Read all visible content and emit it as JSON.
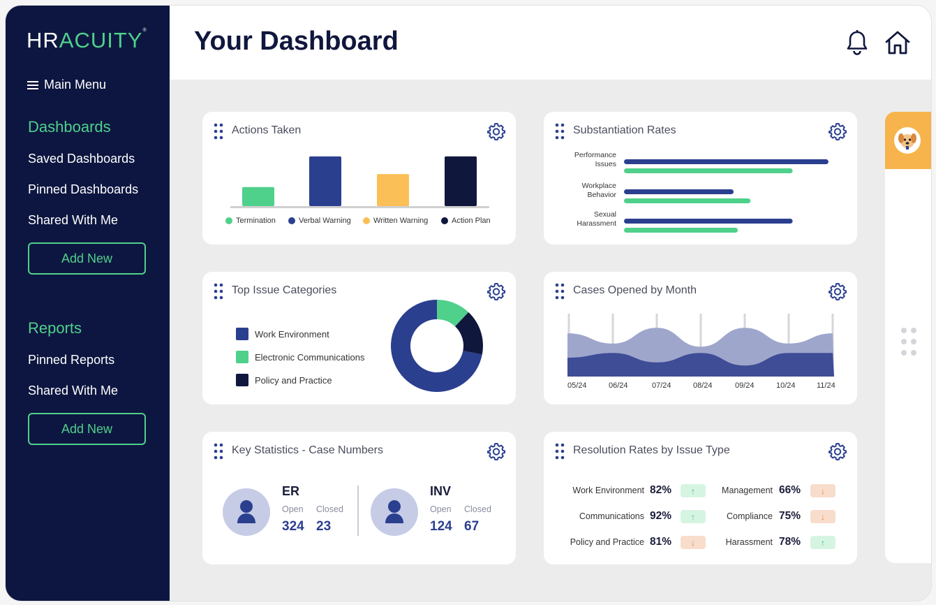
{
  "brand": {
    "logo_left": "HR",
    "logo_right": "ACUITY",
    "logo_tm": "®"
  },
  "sidebar": {
    "menu_label": "Main Menu",
    "dashboards_title": "Dashboards",
    "dashboard_items": [
      "Saved Dashboards",
      "Pinned Dashboards",
      "Shared With Me"
    ],
    "add_new_1": "Add New",
    "reports_title": "Reports",
    "report_items": [
      "Pinned Reports",
      "Shared With Me"
    ],
    "add_new_2": "Add New"
  },
  "header": {
    "title": "Your Dashboard",
    "icons": [
      "bell-icon",
      "home-icon"
    ]
  },
  "colors": {
    "navy": "#0d1640",
    "green": "#4fd08b",
    "blue": "#2b3f8f",
    "yellow": "#fbbf57",
    "dark": "#10173d",
    "orange": "#f7b44c"
  },
  "cards": {
    "actions": {
      "title": "Actions Taken",
      "legend": [
        "Termination",
        "Verbal Warning",
        "Written Warning",
        "Action Plan"
      ]
    },
    "substantiation": {
      "title": "Substantiation Rates",
      "labels": [
        [
          "Performance",
          "Issues"
        ],
        [
          "Workplace",
          "Behavior"
        ],
        [
          "Sexual",
          "Harassment"
        ]
      ]
    },
    "issues": {
      "title": "Top Issue Categories",
      "legend": [
        "Work Environment",
        "Electronic Communications",
        "Policy and Practice"
      ]
    },
    "cases": {
      "title": "Cases Opened by Month",
      "months": [
        "05/24",
        "06/24",
        "07/24",
        "08/24",
        "09/24",
        "10/24",
        "11/24"
      ]
    },
    "stats": {
      "title": "Key Statistics - Case Numbers",
      "groups": [
        {
          "name": "ER",
          "open_label": "Open",
          "closed_label": "Closed",
          "open": "324",
          "closed": "23"
        },
        {
          "name": "INV",
          "open_label": "Open",
          "closed_label": "Closed",
          "open": "124",
          "closed": "67"
        }
      ]
    },
    "resolution": {
      "title": "Resolution Rates by Issue Type",
      "rows": [
        {
          "label": "Work Environment",
          "pct": "82%",
          "dir": "up",
          "arrow": "↑"
        },
        {
          "label": "Communications",
          "pct": "92%",
          "dir": "up",
          "arrow": "↑"
        },
        {
          "label": "Policy and Practice",
          "pct": "81%",
          "dir": "down",
          "arrow": "↓"
        },
        {
          "label": "Management",
          "pct": "66%",
          "dir": "down",
          "arrow": "↓"
        },
        {
          "label": "Compliance",
          "pct": "75%",
          "dir": "down",
          "arrow": "↓"
        },
        {
          "label": "Harassment",
          "pct": "78%",
          "dir": "up",
          "arrow": "↑"
        }
      ]
    }
  },
  "chart_data": [
    {
      "type": "bar",
      "categories": [
        "Termination",
        "Verbal Warning",
        "Written Warning",
        "Action Plan"
      ],
      "values": [
        28,
        73,
        47,
        73
      ],
      "ylim": [
        0,
        80
      ],
      "legend": "bottom"
    },
    {
      "type": "bar",
      "orientation": "horizontal",
      "categories": [
        "Performance Issues",
        "Workplace Behavior",
        "Sexual Harassment"
      ],
      "series": [
        {
          "values": [
            97,
            52,
            80
          ]
        },
        {
          "values": [
            80,
            60,
            54
          ]
        }
      ],
      "xlim": [
        0,
        100
      ]
    },
    {
      "type": "pie",
      "donut": true,
      "categories": [
        "Work Environment",
        "Electronic Communications",
        "Policy and Practice"
      ],
      "values": [
        72,
        12,
        16
      ]
    },
    {
      "type": "area",
      "x": [
        "05/24",
        "06/24",
        "07/24",
        "08/24",
        "09/24",
        "10/24",
        "11/24"
      ],
      "series": [
        {
          "values": [
            55,
            42,
            62,
            38,
            62,
            42,
            55
          ]
        },
        {
          "values": [
            24,
            30,
            18,
            30,
            14,
            30,
            30
          ]
        }
      ],
      "ylim": [
        0,
        80
      ]
    }
  ]
}
